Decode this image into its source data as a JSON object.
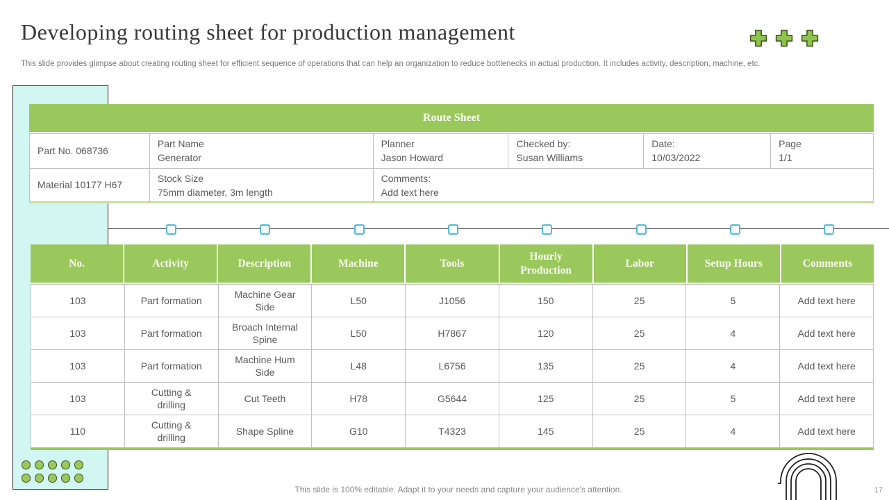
{
  "slide": {
    "title": "Developing routing sheet for production management",
    "subtitle": "This slide provides glimpse about creating routing sheet for efficient sequence of operations that can help an organization to reduce bottlenecks in actual production. It includes activity, description, machine, etc.",
    "footer": "This slide is 100% editable. Adapt it to your needs and capture your audience's attention.",
    "page_number": "17"
  },
  "route_sheet": {
    "title": "Route Sheet",
    "row1": [
      {
        "label": "Part No. 068736",
        "value": ""
      },
      {
        "label": "Part Name",
        "value": "Generator"
      },
      {
        "label": "Planner",
        "value": "Jason Howard"
      },
      {
        "label": "Checked by:",
        "value": "Susan Williams"
      },
      {
        "label": "Date:",
        "value": "10/03/2022"
      },
      {
        "label": "Page",
        "value": "1/1"
      }
    ],
    "row2": [
      {
        "label": "Material 10177 H67",
        "value": ""
      },
      {
        "label": "Stock Size",
        "value": "75mm diameter, 3m length"
      },
      {
        "label": "Comments:",
        "value": "Add text here"
      }
    ]
  },
  "routing_table": {
    "headers": [
      "No.",
      "Activity",
      "Description",
      "Machine",
      "Tools",
      "Hourly Production",
      "Labor",
      "Setup Hours",
      "Comments"
    ],
    "rows": [
      [
        "103",
        "Part formation",
        "Machine Gear Side",
        "L50",
        "J1056",
        "150",
        "25",
        "5",
        "Add text here"
      ],
      [
        "103",
        "Part formation",
        "Broach Internal Spine",
        "L50",
        "H7867",
        "120",
        "25",
        "4",
        "Add text here"
      ],
      [
        "103",
        "Part formation",
        "Machine Hum Side",
        "L48",
        "L6756",
        "135",
        "25",
        "4",
        "Add text here"
      ],
      [
        "103",
        "Cutting & drilling",
        "Cut Teeth",
        "H78",
        "G5644",
        "125",
        "25",
        "5",
        "Add text here"
      ],
      [
        "110",
        "Cutting & drilling",
        "Shape Spline",
        "G10",
        "T4323",
        "145",
        "25",
        "4",
        "Add text here"
      ]
    ]
  },
  "timeline": {
    "marker_count": 8
  },
  "decorations": {
    "plus_icon_count": 3,
    "dot_rows": 2,
    "dot_cols": 5
  },
  "colors": {
    "green": "#9bc85d",
    "icon_green": "#8ec44d",
    "cyan": "#d2f6f1",
    "marker_border": "#58b8d8",
    "text_gray": "#595959",
    "subtitle_gray": "#7a7a7a",
    "border_gray": "#c0c0c0"
  }
}
